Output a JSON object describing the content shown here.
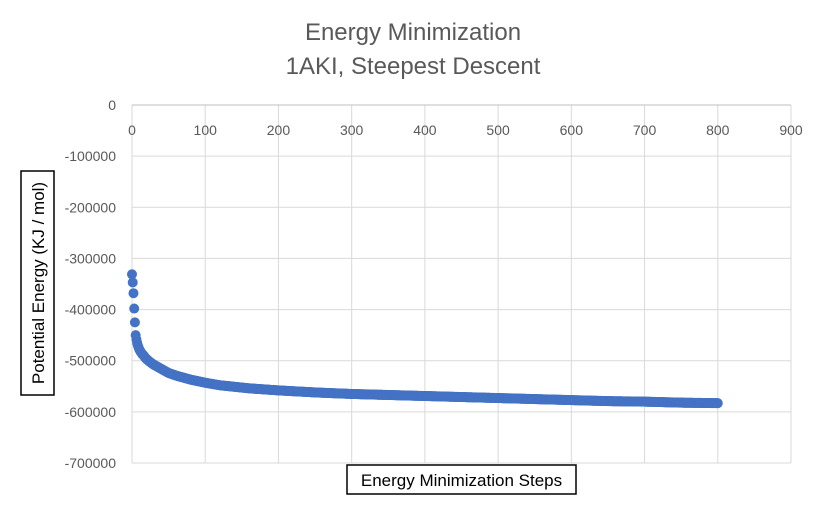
{
  "chart_data": {
    "type": "scatter",
    "title": "Energy Minimization",
    "subtitle": "1AKI, Steepest Descent",
    "xlabel": "Energy Minimization Steps",
    "ylabel": "Potential Energy (KJ / mol)",
    "xlim": [
      0,
      900
    ],
    "ylim": [
      -700000,
      0
    ],
    "x_ticks": [
      0,
      100,
      200,
      300,
      400,
      500,
      600,
      700,
      800,
      900
    ],
    "y_ticks": [
      0,
      -100000,
      -200000,
      -300000,
      -400000,
      -500000,
      -600000,
      -700000
    ],
    "x_tick_labels": [
      "0",
      "100",
      "200",
      "300",
      "400",
      "500",
      "600",
      "700",
      "800",
      "900"
    ],
    "y_tick_labels": [
      "0",
      "-100000",
      "-200000",
      "-300000",
      "-400000",
      "-500000",
      "-600000",
      "-700000"
    ],
    "grid": true,
    "legend": "none",
    "marker_color": "#4472C4",
    "series": [
      {
        "x": [
          0,
          1,
          2,
          3,
          4,
          5,
          6,
          7,
          8,
          9,
          10,
          12,
          14,
          16,
          18,
          20,
          25,
          30,
          35,
          40,
          45,
          50,
          60,
          70,
          80,
          90,
          100,
          120,
          140,
          160,
          180,
          200,
          250,
          300,
          350,
          400,
          450,
          500,
          550,
          600,
          650,
          700,
          750,
          800
        ],
        "y": [
          -331000,
          -347000,
          -368000,
          -398000,
          -425000,
          -450000,
          -458000,
          -465000,
          -470000,
          -474000,
          -478000,
          -483000,
          -487000,
          -490000,
          -494000,
          -497000,
          -503000,
          -508000,
          -512000,
          -516000,
          -520000,
          -524000,
          -529000,
          -533000,
          -537000,
          -540000,
          -543000,
          -548000,
          -551000,
          -554000,
          -556000,
          -558000,
          -562000,
          -565000,
          -567000,
          -569000,
          -571000,
          -573000,
          -575000,
          -577000,
          -579000,
          -580000,
          -582000,
          -583000
        ]
      }
    ]
  }
}
